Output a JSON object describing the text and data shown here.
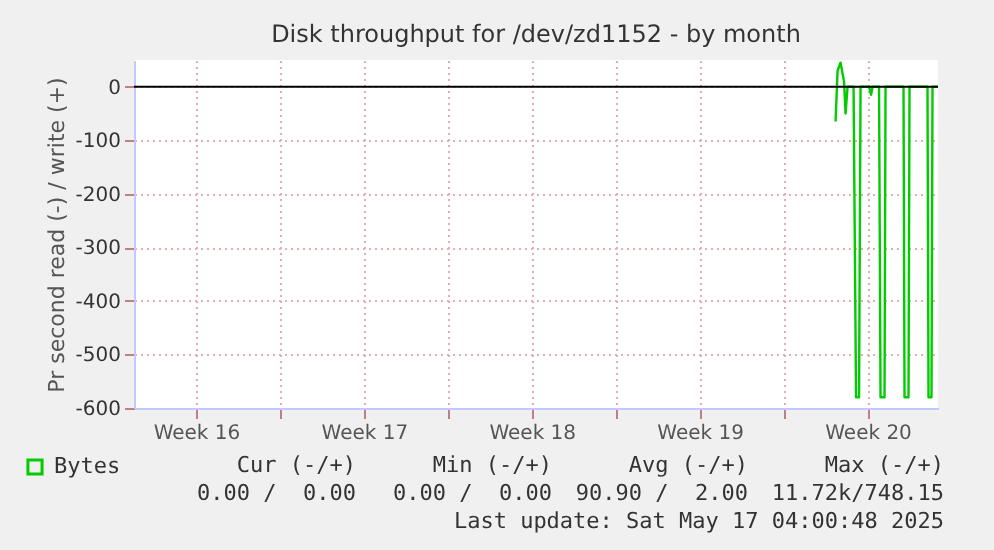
{
  "chart_data": {
    "type": "line",
    "title": "Disk throughput for /dev/zd1152 - by month",
    "ylabel": "Pr second read (-) / write (+)",
    "x": [
      "2025-05-14T04:00",
      "2025-05-14T06:00",
      "2025-05-14T09:00",
      "2025-05-14T12:30",
      "2025-05-14T14:00",
      "2025-05-14T16:00",
      "2025-05-14T22:00",
      "2025-05-15T00:30",
      "2025-05-15T03:30",
      "2025-05-15T05:00",
      "2025-05-15T13:30",
      "2025-05-15T15:30",
      "2025-05-15T17:00",
      "2025-05-15T23:30",
      "2025-05-16T01:00",
      "2025-05-16T05:00",
      "2025-05-16T06:00",
      "2025-05-17T00:00",
      "2025-05-17T01:00",
      "2025-05-17T05:00",
      "2025-05-17T06:00",
      "2025-05-18T00:00",
      "2025-05-18T01:00",
      "2025-05-18T04:00",
      "2025-05-18T05:00",
      "2025-05-18T10:30"
    ],
    "series": [
      {
        "name": "Bytes",
        "color": "#00cc00",
        "values": [
          -65,
          30,
          45,
          10,
          -50,
          0,
          0,
          -580,
          -580,
          0,
          0,
          -15,
          0,
          0,
          -580,
          -580,
          0,
          0,
          -580,
          -580,
          0,
          0,
          -580,
          -580,
          0,
          0
        ]
      }
    ],
    "xlim": [
      "2025-04-14T22:00",
      "2025-05-18T10:30"
    ],
    "xticks": [
      {
        "value": "2025-04-17T12:00",
        "label": "Week 16"
      },
      {
        "value": "2025-04-21",
        "label": null
      },
      {
        "value": "2025-04-24T12:00",
        "label": "Week 17"
      },
      {
        "value": "2025-04-28",
        "label": null
      },
      {
        "value": "2025-05-01T12:00",
        "label": "Week 18"
      },
      {
        "value": "2025-05-05",
        "label": null
      },
      {
        "value": "2025-05-08T12:00",
        "label": "Week 19"
      },
      {
        "value": "2025-05-12",
        "label": null
      },
      {
        "value": "2025-05-15T12:00",
        "label": "Week 20"
      }
    ],
    "ylim": [
      -600,
      50
    ],
    "yticks": [
      -600,
      -500,
      -400,
      -300,
      -200,
      -100,
      0
    ],
    "ref_lines": [
      {
        "axis": "y",
        "value": 0,
        "color": "#000000"
      }
    ],
    "grid": true,
    "legend": "bottom left",
    "marker": "none",
    "line_style": "solid",
    "annotations": [
      "Cur (-/+)",
      "Min (-/+)",
      "Avg (-/+)",
      "Max (-/+)",
      "0.00 /  0.00",
      "0.00 /  0.00",
      "90.90 /  2.00",
      "11.72k/748.15",
      "Last update: Sat May 17 04:00:48 2025"
    ]
  }
}
